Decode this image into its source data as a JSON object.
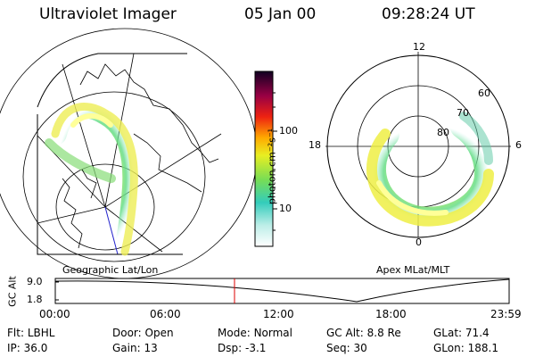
{
  "header": {
    "instrument": "Ultraviolet Imager",
    "date": "05 Jan 00",
    "time": "09:28:24 UT"
  },
  "colorbar": {
    "label": "photon cm⁻²s⁻¹",
    "ticks": [
      "100",
      "10"
    ]
  },
  "geo_panel": {
    "caption": "Geographic Lat/Lon"
  },
  "apex_panel": {
    "caption": "Apex MLat/MLT",
    "mlt_labels": {
      "top": "12",
      "left": "18",
      "right": "6",
      "bottom": "0"
    },
    "lat_labels": [
      "60",
      "70",
      "80"
    ]
  },
  "altitude_plot": {
    "ylabel": "GC Alt",
    "yticks": [
      "9.0",
      "1.8"
    ],
    "xticks": [
      "00:00",
      "06:00",
      "12:00",
      "18:00",
      "23:59"
    ],
    "current_marker_hours": 9.47
  },
  "info": {
    "filter_label": "Flt:",
    "filter_value": "LBHL",
    "ip_label": "IP:",
    "ip_value": "36.0",
    "door_label": "Door:",
    "door_value": "Open",
    "gain_label": "Gain:",
    "gain_value": "13",
    "mode_label": "Mode:",
    "mode_value": "Normal",
    "dsp_label": "Dsp:",
    "dsp_value": "-3.1",
    "gcalt_label": "GC Alt:",
    "gcalt_value": "8.8 Re",
    "seq_label": "Seq:",
    "seq_value": "30",
    "glat_label": "GLat:",
    "glat_value": "71.4",
    "glon_label": "GLon:",
    "glon_value": "188.1"
  }
}
